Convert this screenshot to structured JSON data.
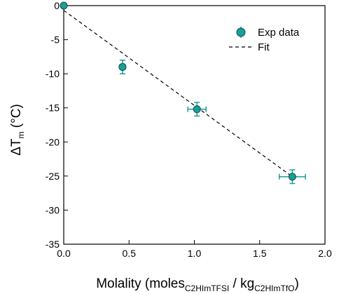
{
  "chart_data": {
    "type": "scatter",
    "xlabel": {
      "main": "Molality (moles",
      "sub1": "C2HImTFSI",
      "mid": " / kg",
      "sub2": "C2HImTfO",
      "end": ")"
    },
    "ylabel": {
      "main": "ΔT",
      "sub": "m",
      "end": " (°C)"
    },
    "xlim": [
      0.0,
      2.0
    ],
    "ylim": [
      -35,
      0
    ],
    "xticks": [
      0.0,
      0.5,
      1.0,
      1.5,
      2.0
    ],
    "xtick_labels": [
      "0.0",
      "0.5",
      "1.0",
      "1.5",
      "2.0"
    ],
    "yticks": [
      0,
      -5,
      -10,
      -15,
      -20,
      -25,
      -30,
      -35
    ],
    "ytick_labels": [
      "0",
      "-5",
      "-10",
      "-15",
      "-20",
      "-25",
      "-30",
      "-35"
    ],
    "grid": false,
    "legend_position": "top-right",
    "series": [
      {
        "name": "Exp data",
        "kind": "markers",
        "color": "#1a9e96",
        "points": [
          {
            "x": 0.0,
            "y": 0.0,
            "xerr": 0.0,
            "yerr": 0.0
          },
          {
            "x": 0.45,
            "y": -9.0,
            "xerr": 0.02,
            "yerr": 1.0
          },
          {
            "x": 1.02,
            "y": -15.2,
            "xerr": 0.07,
            "yerr": 1.0
          },
          {
            "x": 1.75,
            "y": -25.1,
            "xerr": 0.1,
            "yerr": 1.0
          }
        ]
      },
      {
        "name": "Fit",
        "kind": "dashed-line",
        "color": "#000000",
        "x": [
          0.0,
          1.75
        ],
        "y": [
          -0.7,
          -25.1
        ]
      }
    ]
  }
}
